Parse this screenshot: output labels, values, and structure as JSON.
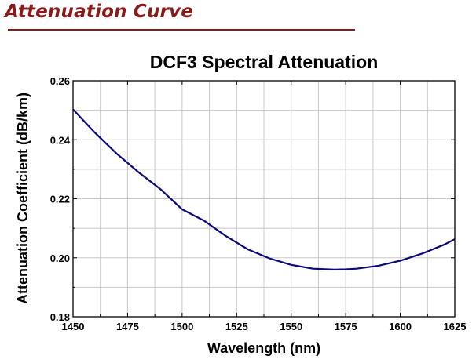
{
  "header": {
    "section_title": "Attenuation Curve",
    "accent_color": "#8a1a1a"
  },
  "chart_data": {
    "type": "line",
    "title": "DCF3 Spectral Attenuation",
    "xlabel": "Wavelength (nm)",
    "ylabel": "Attenuation Coefficient (dB/km)",
    "xlim": [
      1450,
      1625
    ],
    "ylim": [
      0.18,
      0.26
    ],
    "x_ticks": [
      1450,
      1475,
      1500,
      1525,
      1550,
      1575,
      1600,
      1625
    ],
    "x_tick_labels": [
      "1450",
      "1475",
      "1500",
      "1525",
      "1550",
      "1575",
      "1600",
      "1625"
    ],
    "y_ticks": [
      0.18,
      0.2,
      0.22,
      0.24,
      0.26
    ],
    "y_tick_labels": [
      "0.18",
      "0.20",
      "0.22",
      "0.24",
      "0.26"
    ],
    "x_minor_grid": [
      1462.5,
      1487.5,
      1512.5,
      1537.5,
      1562.5,
      1587.5,
      1612.5
    ],
    "y_minor_grid": [
      0.19,
      0.21,
      0.23,
      0.25
    ],
    "grid": true,
    "series": [
      {
        "name": "DCF3",
        "color": "#0a0a78",
        "x": [
          1450,
          1460,
          1470,
          1480,
          1490,
          1500,
          1510,
          1520,
          1530,
          1540,
          1550,
          1560,
          1570,
          1575,
          1580,
          1590,
          1600,
          1610,
          1620,
          1625
        ],
        "y": [
          0.2503,
          0.2424,
          0.2353,
          0.229,
          0.2233,
          0.2164,
          0.2126,
          0.2074,
          0.2029,
          0.1998,
          0.1976,
          0.1963,
          0.196,
          0.1961,
          0.1963,
          0.1973,
          0.199,
          0.2014,
          0.2044,
          0.2063
        ]
      }
    ]
  }
}
